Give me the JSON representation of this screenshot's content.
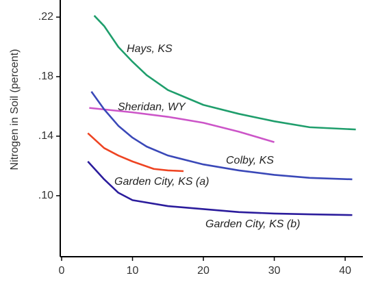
{
  "chart_data": {
    "type": "line",
    "ylabel": "Nitrogen in Soil (percent)",
    "xlim": [
      0,
      42.5
    ],
    "ylim": [
      0.059,
      0.2315
    ],
    "xticks": [
      0,
      10,
      20,
      30,
      40
    ],
    "yticks": [
      {
        "value": 0.1,
        "label": ".10"
      },
      {
        "value": 0.14,
        "label": ".14"
      },
      {
        "value": 0.18,
        "label": ".18"
      },
      {
        "value": 0.22,
        "label": ".22"
      }
    ],
    "grid": false,
    "series": [
      {
        "name": "Hays, KS",
        "color": "#1f9e6c",
        "x": [
          4.6,
          6,
          8,
          10,
          12,
          15,
          20,
          25,
          30,
          35,
          41.5
        ],
        "values": [
          0.221,
          0.214,
          0.2,
          0.19,
          0.181,
          0.171,
          0.161,
          0.155,
          0.15,
          0.146,
          0.1445
        ]
      },
      {
        "name": "Sheridan, WY",
        "color": "#cc55c8",
        "x": [
          3.9,
          10,
          15,
          20,
          25,
          30
        ],
        "values": [
          0.159,
          0.156,
          0.153,
          0.149,
          0.143,
          0.136
        ]
      },
      {
        "name": "Colby, KS",
        "color": "#3a48b8",
        "x": [
          4.2,
          6,
          8,
          10,
          12,
          15,
          20,
          25,
          30,
          35,
          41
        ],
        "values": [
          0.17,
          0.158,
          0.147,
          0.139,
          0.133,
          0.127,
          0.121,
          0.117,
          0.114,
          0.112,
          0.111
        ]
      },
      {
        "name": "Garden City, KS (a)",
        "color": "#ee4422",
        "x": [
          3.7,
          6,
          8,
          10,
          13,
          15,
          17.2
        ],
        "values": [
          0.142,
          0.132,
          0.127,
          0.123,
          0.118,
          0.117,
          0.1165
        ]
      },
      {
        "name": "Garden City, KS (b)",
        "color": "#2b1c9c",
        "x": [
          3.7,
          6,
          8,
          10,
          15,
          20,
          25,
          30,
          35,
          41
        ],
        "values": [
          0.123,
          0.111,
          0.102,
          0.097,
          0.093,
          0.091,
          0.089,
          0.088,
          0.0875,
          0.087
        ]
      }
    ]
  }
}
